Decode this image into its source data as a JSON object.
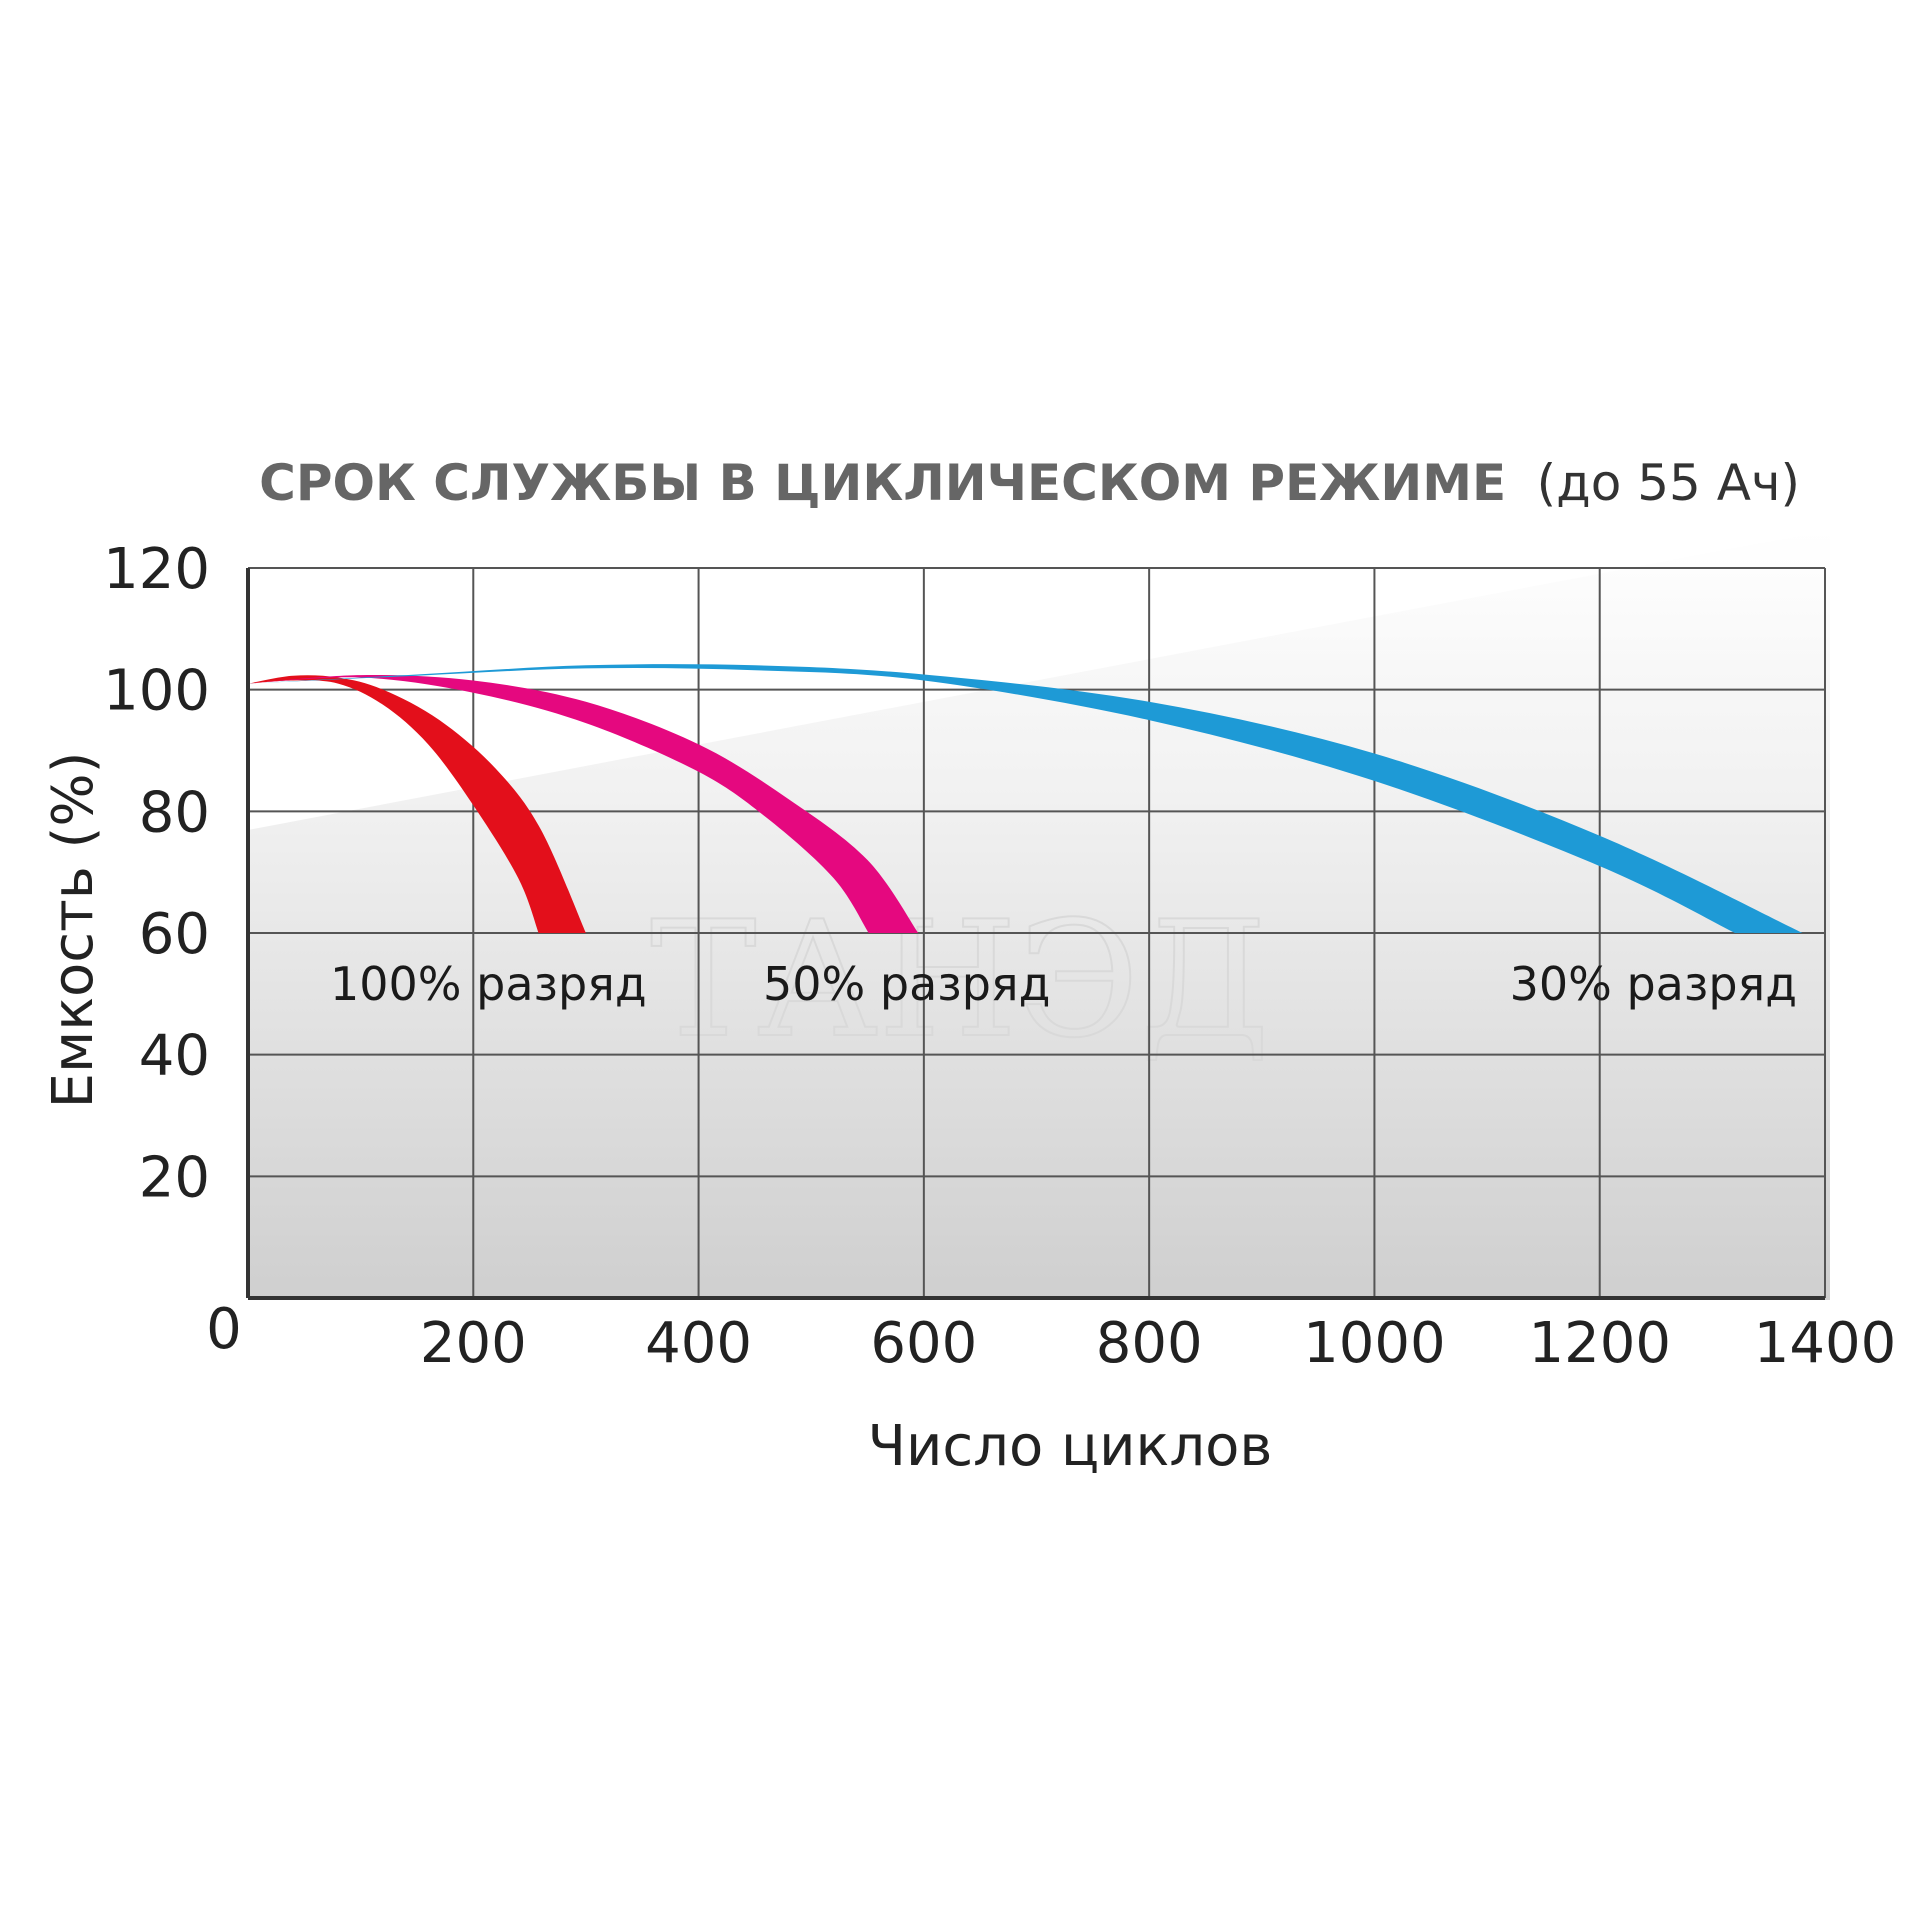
{
  "chart_data": {
    "type": "area",
    "title": "СРОК СЛУЖБЫ В ЦИКЛИЧЕСКОМ РЕЖИМЕ",
    "subtitle": "(до 55 Ач)",
    "xlabel": "Число циклов",
    "ylabel": "Емкость (%)",
    "xlim": [
      0,
      1400
    ],
    "ylim": [
      0,
      120
    ],
    "x_ticks": [
      "0",
      "200",
      "400",
      "600",
      "800",
      "1000",
      "1200",
      "1400"
    ],
    "y_ticks": [
      "20",
      "40",
      "60",
      "80",
      "100",
      "120"
    ],
    "grid": true,
    "watermark": "ТАНЭД",
    "series": [
      {
        "name": "100% разряд",
        "color": "#e30f1b",
        "upper": [
          [
            0,
            101
          ],
          [
            40,
            102.3
          ],
          [
            80,
            102
          ],
          [
            120,
            100
          ],
          [
            170,
            95
          ],
          [
            220,
            87
          ],
          [
            260,
            77
          ],
          [
            300,
            60
          ]
        ],
        "lower": [
          [
            0,
            101
          ],
          [
            40,
            101.5
          ],
          [
            80,
            101
          ],
          [
            120,
            97.5
          ],
          [
            160,
            91
          ],
          [
            200,
            81
          ],
          [
            240,
            69
          ],
          [
            258,
            60
          ]
        ]
      },
      {
        "name": "50% разряд",
        "color": "#e5087f",
        "upper": [
          [
            0,
            101
          ],
          [
            100,
            102.4
          ],
          [
            200,
            101.5
          ],
          [
            300,
            98
          ],
          [
            400,
            91
          ],
          [
            480,
            82
          ],
          [
            550,
            72
          ],
          [
            595,
            60
          ]
        ],
        "lower": [
          [
            0,
            101
          ],
          [
            100,
            102
          ],
          [
            200,
            99.5
          ],
          [
            300,
            94.5
          ],
          [
            400,
            86.5
          ],
          [
            460,
            79
          ],
          [
            520,
            69
          ],
          [
            551,
            60
          ]
        ]
      },
      {
        "name": "30% разряд",
        "color": "#1e9ad6",
        "upper": [
          [
            0,
            101
          ],
          [
            150,
            102.5
          ],
          [
            300,
            104
          ],
          [
            450,
            104
          ],
          [
            600,
            102.5
          ],
          [
            800,
            98
          ],
          [
            1000,
            89.5
          ],
          [
            1200,
            76
          ],
          [
            1380,
            60
          ]
        ],
        "lower": [
          [
            0,
            101
          ],
          [
            150,
            102.3
          ],
          [
            300,
            103.5
          ],
          [
            450,
            103.2
          ],
          [
            600,
            101.5
          ],
          [
            800,
            95
          ],
          [
            1000,
            85
          ],
          [
            1200,
            71
          ],
          [
            1320,
            60
          ]
        ]
      }
    ]
  }
}
